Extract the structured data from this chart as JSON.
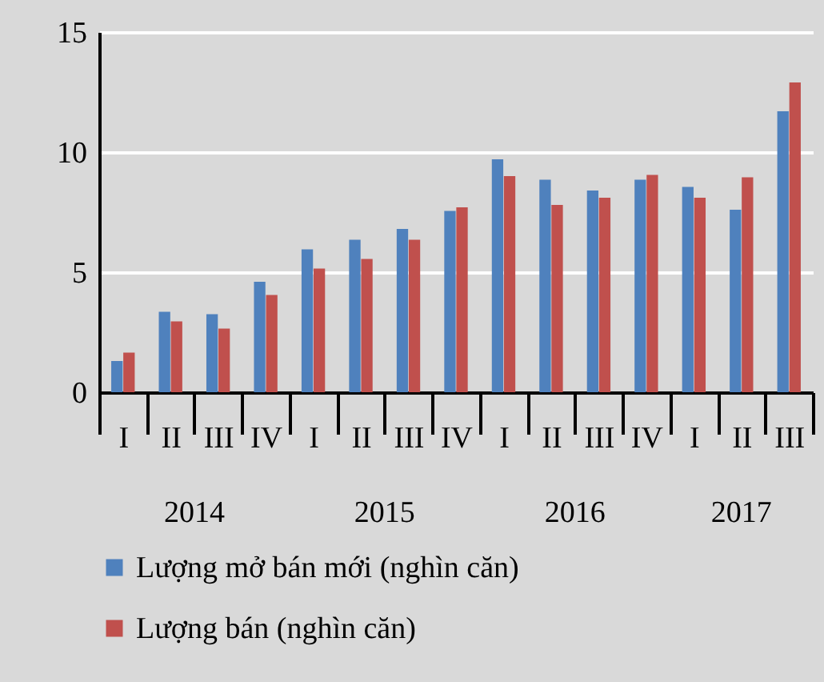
{
  "chart_data": {
    "type": "bar",
    "categories": [
      "I",
      "II",
      "III",
      "IV",
      "I",
      "II",
      "III",
      "IV",
      "I",
      "II",
      "III",
      "IV",
      "I",
      "II",
      "III"
    ],
    "series": [
      {
        "name": "Lượng mở bán mới (nghìn căn)",
        "color": "#4f81bd",
        "values": [
          1.3,
          3.35,
          3.25,
          4.6,
          5.95,
          6.35,
          6.8,
          7.55,
          9.7,
          8.85,
          8.4,
          8.85,
          8.55,
          7.6,
          11.7
        ]
      },
      {
        "name": "Lượng bán (nghìn căn)",
        "color": "#c0504d",
        "values": [
          1.65,
          2.95,
          2.65,
          4.05,
          5.15,
          5.55,
          6.35,
          7.7,
          9.0,
          7.8,
          8.1,
          9.05,
          8.1,
          8.95,
          12.9
        ]
      }
    ],
    "annotations": [
      "2014",
      "2015",
      "2016",
      "2017"
    ],
    "ylim": [
      0,
      15
    ],
    "yticks": [
      0,
      5,
      10,
      15
    ],
    "grid": "y",
    "legend": "bottom"
  }
}
